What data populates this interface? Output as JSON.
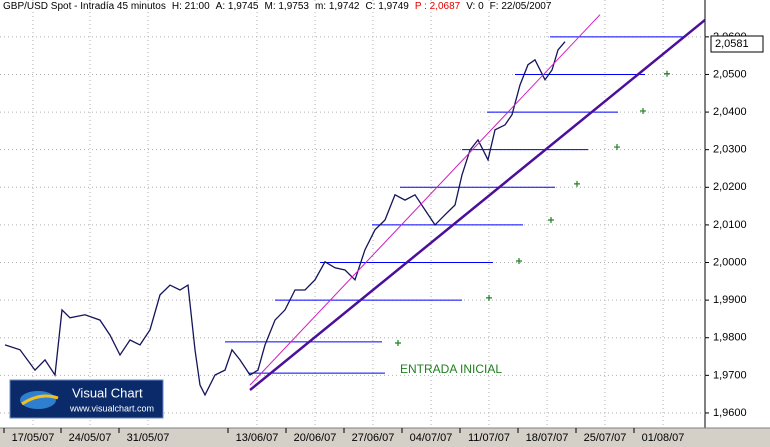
{
  "chart_data": {
    "type": "line",
    "header": [
      "GBP/USD Spot - Intradía 45 minutos",
      "H: 21:00",
      "A: 1,9745",
      "M: 1,9753",
      "m: 1,9742",
      "C: 1,9749",
      "P : 2,0687",
      "V: 0",
      "F: 22/05/2007"
    ],
    "header_colors": [
      "#000000",
      "#000000",
      "#000000",
      "#000000",
      "#000000",
      "#000000",
      "#e00000",
      "#000000",
      "#000000"
    ],
    "xlim": [
      0,
      141
    ],
    "ylim": [
      1.956,
      2.0698
    ],
    "xticks": [
      {
        "value": 6.6,
        "label": "17/05/07"
      },
      {
        "value": 18,
        "label": "24/05/07"
      },
      {
        "value": 29.6,
        "label": "31/05/07"
      },
      {
        "value": 51.4,
        "label": "13/06/07"
      },
      {
        "value": 63,
        "label": "20/06/07"
      },
      {
        "value": 74.6,
        "label": "27/06/07"
      },
      {
        "value": 86.2,
        "label": "04/07/07"
      },
      {
        "value": 97.8,
        "label": "11/07/07"
      },
      {
        "value": 109.4,
        "label": "18/07/07"
      },
      {
        "value": 121,
        "label": "25/07/07"
      },
      {
        "value": 132.6,
        "label": "01/08/07"
      }
    ],
    "yticks": [
      {
        "value": 2.06,
        "label": "2,0600"
      },
      {
        "value": 2.05,
        "label": "2,0500"
      },
      {
        "value": 2.04,
        "label": "2,0400"
      },
      {
        "value": 2.03,
        "label": "2,0300"
      },
      {
        "value": 2.02,
        "label": "2,0200"
      },
      {
        "value": 2.01,
        "label": "2,0100"
      },
      {
        "value": 2.0,
        "label": "2,0000"
      },
      {
        "value": 1.99,
        "label": "1,9900"
      },
      {
        "value": 1.98,
        "label": "1,9800"
      },
      {
        "value": 1.97,
        "label": "1,9700"
      },
      {
        "value": 1.96,
        "label": "1,9600"
      }
    ],
    "grid": true,
    "series": [
      {
        "name": "GBP/USD",
        "color": "#14145a",
        "x": [
          1,
          4,
          7,
          9,
          11,
          12.4,
          14,
          17,
          20,
          22,
          24,
          26,
          28,
          30,
          32,
          34,
          36,
          37.6,
          39,
          40,
          41,
          43,
          45,
          46.4,
          48,
          50,
          51.6,
          53,
          55,
          57,
          59,
          61,
          63,
          65,
          67,
          69,
          71,
          73,
          75,
          77,
          79,
          81,
          83,
          85,
          87,
          89,
          91,
          92.4,
          94,
          95.6,
          97.6,
          99,
          101,
          102.4,
          104,
          105.6,
          107,
          109,
          110.4,
          111.6,
          113
        ],
        "values": [
          1.9781,
          1.9768,
          1.9714,
          1.9741,
          1.9701,
          1.9874,
          1.9853,
          1.9861,
          1.9847,
          1.9807,
          1.9754,
          1.9794,
          1.9781,
          1.9821,
          1.9914,
          1.994,
          1.9927,
          1.994,
          1.9768,
          1.9674,
          1.9648,
          1.9701,
          1.9714,
          1.9768,
          1.9741,
          1.9701,
          1.9714,
          1.9781,
          1.9847,
          1.9874,
          1.9927,
          1.9927,
          1.9954,
          2.0002,
          1.9986,
          1.998,
          1.9954,
          2.0034,
          2.0087,
          2.0113,
          2.018,
          2.0166,
          2.018,
          2.014,
          2.01,
          2.0127,
          2.0153,
          2.0233,
          2.0299,
          2.0326,
          2.0273,
          2.0353,
          2.0366,
          2.0393,
          2.0472,
          2.0526,
          2.0539,
          2.0486,
          2.0512,
          2.0565,
          2.0587
        ]
      }
    ],
    "hlines": [
      {
        "value": 2.06,
        "x": [
          110,
          137
        ],
        "color": "#0000ff"
      },
      {
        "value": 2.05,
        "x": [
          103,
          129
        ],
        "color": "#0000ff"
      },
      {
        "value": 2.04,
        "x": [
          97.4,
          123.6
        ],
        "color": "#0000ff"
      },
      {
        "value": 2.03,
        "x": [
          92.4,
          117.6
        ],
        "color": "#0000ff"
      },
      {
        "value": 2.02,
        "x": [
          80,
          111
        ],
        "color": "#0000ff"
      },
      {
        "value": 2.01,
        "x": [
          74.4,
          104.6
        ],
        "color": "#0000ff"
      },
      {
        "value": 2.0,
        "x": [
          64,
          98.6
        ],
        "color": "#0000ff"
      },
      {
        "value": 1.99,
        "x": [
          55,
          92.4
        ],
        "color": "#0000ff"
      },
      {
        "value": 1.9789,
        "x": [
          45,
          76.4
        ],
        "color": "#0000ff"
      },
      {
        "value": 1.9706,
        "x": [
          49.6,
          77
        ],
        "color": "#0000ff"
      }
    ],
    "trendlines": [
      {
        "color": "#4b0f9a",
        "width": 2.5,
        "x": [
          50,
          141
        ],
        "values": [
          1.9661,
          2.0645
        ]
      },
      {
        "color": "#d020c0",
        "width": 1,
        "x": [
          50,
          120
        ],
        "values": [
          1.9674,
          2.0659
        ]
      }
    ],
    "markers": {
      "color": "#208020",
      "x": [
        79.6,
        97.8,
        103.8,
        110.2,
        115.4,
        123.4,
        128.6,
        133.4
      ],
      "values": [
        1.9786,
        1.9906,
        2.0004,
        2.0113,
        2.0209,
        2.0307,
        2.0403,
        2.0502
      ]
    },
    "annotation": {
      "text": "ENTRADA INICIAL",
      "x": 80,
      "value": 1.9707,
      "color": "#208020"
    },
    "last_price": {
      "value": 2.0581,
      "label": "2,0581"
    },
    "logo": {
      "title": "Visual Chart",
      "url": "www.visualchart.com"
    }
  }
}
